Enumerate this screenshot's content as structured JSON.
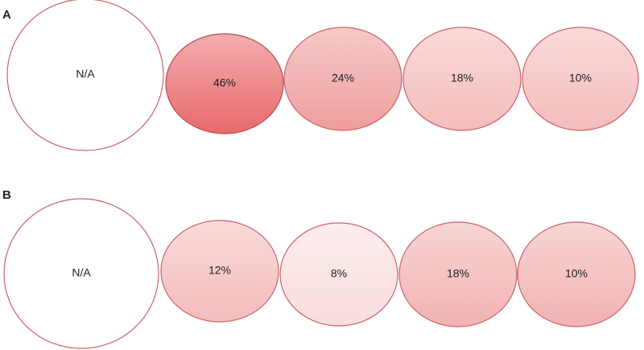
{
  "panels": [
    {
      "label": "A",
      "nodes": [
        {
          "text": "N/A",
          "fill": "#ffffff"
        },
        {
          "text": "46%",
          "fill": "#e86a6c"
        },
        {
          "text": "24%",
          "fill": "#ef9e9e"
        },
        {
          "text": "18%",
          "fill": "#f4bcbc"
        },
        {
          "text": "10%",
          "fill": "#f4bcbc"
        }
      ]
    },
    {
      "label": "B",
      "nodes": [
        {
          "text": "N/A",
          "fill": "#ffffff"
        },
        {
          "text": "12%",
          "fill": "#f4bcbc"
        },
        {
          "text": "8%",
          "fill": "#fadddd"
        },
        {
          "text": "18%",
          "fill": "#f2b2b2"
        },
        {
          "text": "10%",
          "fill": "#f2b2b2"
        }
      ]
    }
  ]
}
